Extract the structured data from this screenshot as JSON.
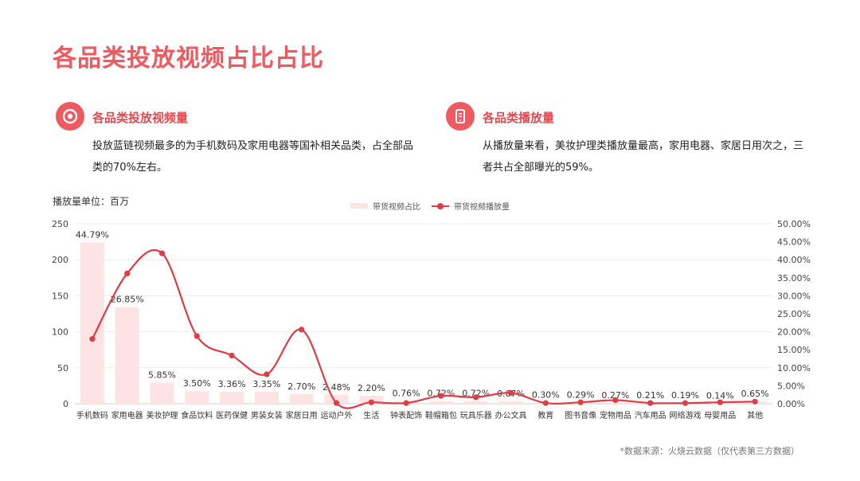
{
  "page": {
    "title": "各品类投放视频占比占比",
    "unit_label": "播放量单位：百万",
    "source_note": "*数据来源：火烧云数据（仅代表第三方数据）"
  },
  "insights": [
    {
      "icon": "target-icon",
      "heading": "各品类投放视频量",
      "body": "投放蓝链视频最多的为手机数码及家用电器等国补相关品类，占全部品类的70%左右。"
    },
    {
      "icon": "phone-icon",
      "heading": "各品类播放量",
      "body": "从播放量来看，美妆护理类播放量最高，家用电器、家居日用次之，三者共占全部曝光的59%。"
    }
  ],
  "legend": {
    "bar_label": "带货视频占比",
    "line_label": "带货视频播放量"
  },
  "colors": {
    "title": "#ee5a5f",
    "bar": "#fde3e4",
    "line": "#e23b44"
  },
  "chart_data": {
    "type": "bar+line",
    "categories": [
      "手机数码",
      "家用电器",
      "美妆护理",
      "食品饮料",
      "医药保健",
      "男装女装",
      "家居日用",
      "运动户外",
      "生活",
      "钟表配饰",
      "鞋帽箱包",
      "玩具乐器",
      "办公文具",
      "教育",
      "图书音像",
      "宠物用品",
      "汽车用品",
      "网络游戏",
      "母婴用品",
      "其他"
    ],
    "series": [
      {
        "name": "带货视频占比",
        "type": "bar",
        "axis": "right",
        "values": [
          44.79,
          26.85,
          5.85,
          3.5,
          3.36,
          3.35,
          2.7,
          2.48,
          2.2,
          0.76,
          0.72,
          0.72,
          0.67,
          0.3,
          0.29,
          0.27,
          0.21,
          0.19,
          0.14,
          0.65
        ],
        "labels": [
          "44.79%",
          "26.85%",
          "5.85%",
          "3.50%",
          "3.36%",
          "3.35%",
          "2.70%",
          "2.48%",
          "2.20%",
          "0.76%",
          "0.72%",
          "0.72%",
          "0.67%",
          "0.30%",
          "0.29%",
          "0.27%",
          "0.21%",
          "0.19%",
          "0.14%",
          "0.65%"
        ]
      },
      {
        "name": "带货视频播放量",
        "type": "line",
        "axis": "left",
        "values": [
          90,
          181,
          209,
          94,
          67,
          41,
          103,
          1,
          2,
          1,
          11,
          9,
          15,
          1,
          2,
          5,
          1,
          1,
          2,
          3
        ]
      }
    ],
    "y_left": {
      "ticks": [
        "0",
        "50",
        "100",
        "150",
        "200",
        "250"
      ],
      "range": [
        0,
        250
      ]
    },
    "y_right": {
      "ticks": [
        "0.00%",
        "5.00%",
        "10.00%",
        "15.00%",
        "20.00%",
        "25.00%",
        "30.00%",
        "35.00%",
        "40.00%",
        "45.00%",
        "50.00%"
      ],
      "range": [
        0,
        50
      ]
    },
    "grid": true,
    "legend_position": "top-center"
  }
}
